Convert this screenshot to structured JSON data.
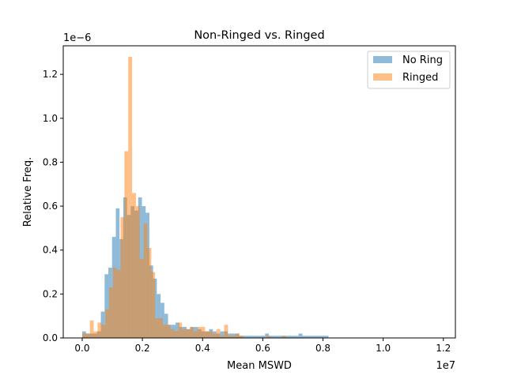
{
  "chart_data": {
    "type": "histogram",
    "title": "Non-Ringed vs. Ringed",
    "xlabel": "Mean MSWD",
    "ylabel": "Relative Freq.",
    "x_offset_text": "1e7",
    "y_offset_text": "1e−6",
    "x_scale": 10000000,
    "y_scale": 1e-06,
    "xlim": [
      -0.063,
      1.24
    ],
    "ylim": [
      0,
      1.33
    ],
    "x_ticks": [
      0.0,
      0.2,
      0.4,
      0.6,
      0.8,
      1.0,
      1.2
    ],
    "x_tick_labels": [
      "0.0",
      "0.2",
      "0.4",
      "0.6",
      "0.8",
      "1.0",
      "1.2"
    ],
    "y_ticks": [
      0.0,
      0.2,
      0.4,
      0.6,
      0.8,
      1.0,
      1.2
    ],
    "y_tick_labels": [
      "0.0",
      "0.2",
      "0.4",
      "0.6",
      "0.8",
      "1.0",
      "1.2"
    ],
    "legend_position": "upper right",
    "series": [
      {
        "name": "No Ring",
        "color": "#1f77b4",
        "alpha": 0.5,
        "bin_start": 0.0,
        "bin_width": 0.0124,
        "values": [
          0.03,
          0.02,
          0.02,
          0.02,
          0.03,
          0.12,
          0.29,
          0.32,
          0.46,
          0.59,
          0.45,
          0.64,
          0.56,
          0.6,
          0.58,
          0.64,
          0.6,
          0.57,
          0.33,
          0.27,
          0.2,
          0.16,
          0.11,
          0.06,
          0.06,
          0.07,
          0.05,
          0.05,
          0.04,
          0.05,
          0.05,
          0.04,
          0.03,
          0.03,
          0.04,
          0.03,
          0.02,
          0.03,
          0.03,
          0.02,
          0.02,
          0.02,
          0.01,
          0.01,
          0.01,
          0.01,
          0.01,
          0.01,
          0.01,
          0.02,
          0.01,
          0.01,
          0.01,
          0.01,
          0.01,
          0.01,
          0.01,
          0.01,
          0.02,
          0.01,
          0.01,
          0.01,
          0.01,
          0.01,
          0.01,
          0.01
        ]
      },
      {
        "name": "Ringed",
        "color": "#ff7f0e",
        "alpha": 0.5,
        "bin_start": 0.0,
        "bin_width": 0.01275,
        "values": [
          0.02,
          0.02,
          0.08,
          0.03,
          0.07,
          0.06,
          0.13,
          0.23,
          0.32,
          0.31,
          0.55,
          0.85,
          1.28,
          0.66,
          0.6,
          0.36,
          0.52,
          0.41,
          0.3,
          0.09,
          0.09,
          0.06,
          0.06,
          0.04,
          0.03,
          0.07,
          0.04,
          0.04,
          0.05,
          0.03,
          0.05,
          0.05,
          0.03,
          0.03,
          0.02,
          0.04,
          0.01,
          0.06,
          0.01,
          0.01,
          0.02,
          0.01,
          0.0,
          0.0,
          0.0,
          0.0,
          0.0,
          0.0,
          0.01,
          0.0,
          0.0,
          0.0,
          0.01,
          0.0,
          0.0,
          0.0,
          0.0,
          0.0,
          0.0,
          0.0,
          0.0,
          0.0
        ]
      }
    ]
  }
}
